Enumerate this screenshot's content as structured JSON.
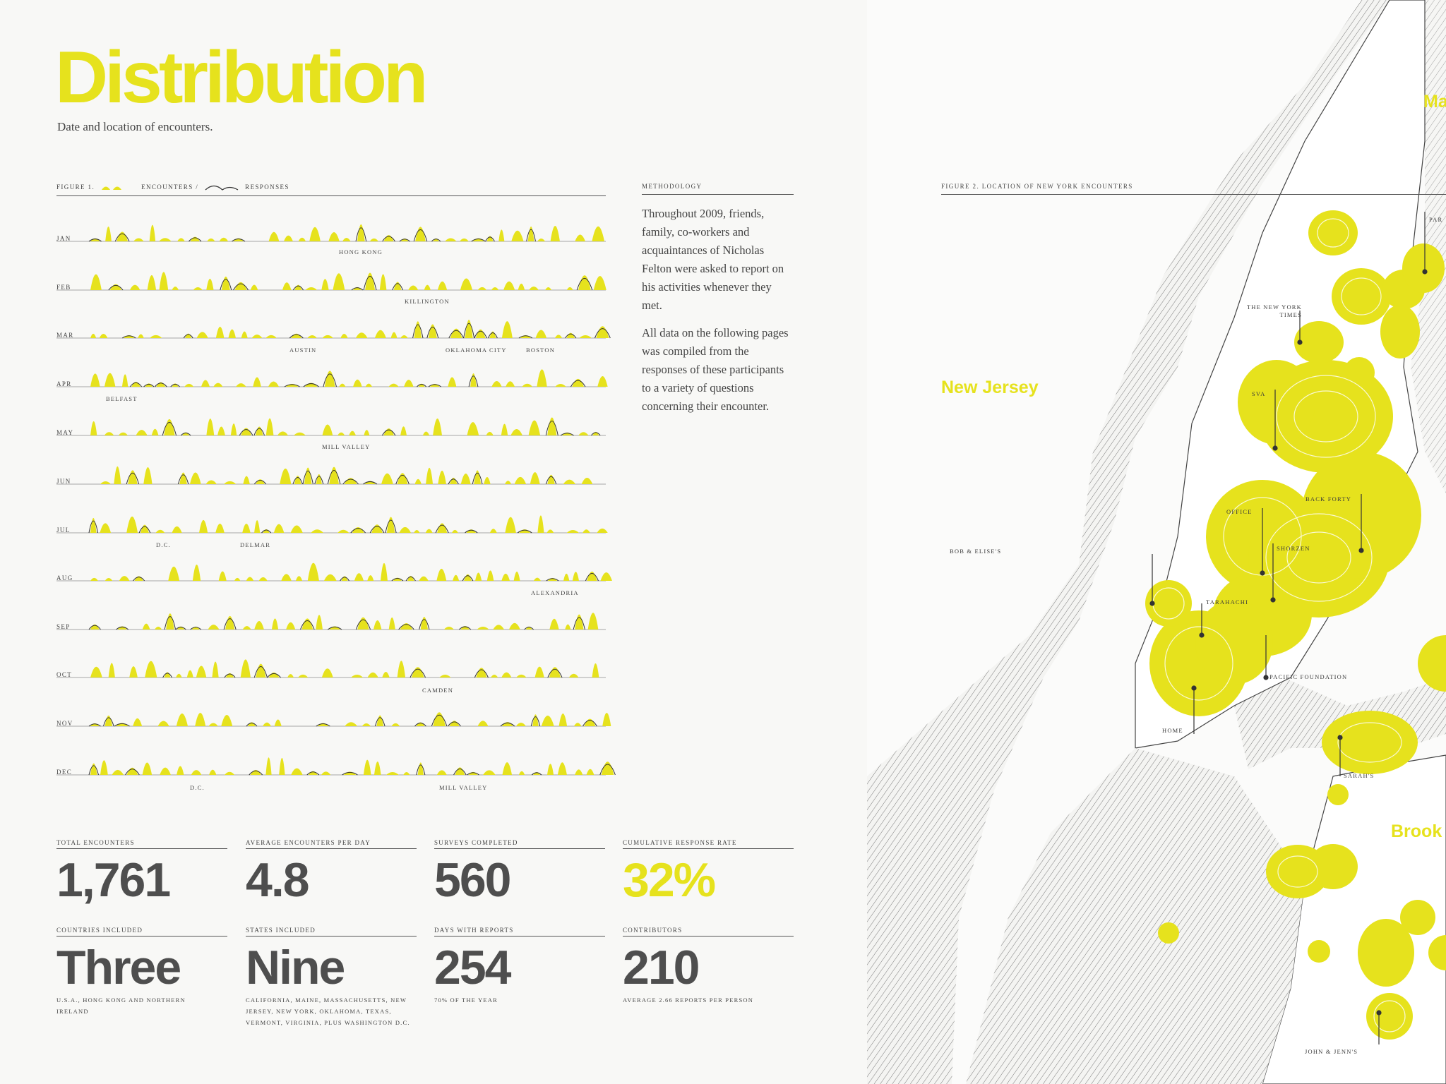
{
  "title": "Distribution",
  "subtitle": "Date and location of encounters.",
  "figure1": {
    "label": "FIGURE 1.",
    "legend_encounters": "ENCOUNTERS /",
    "legend_responses": "RESPONSES",
    "months": [
      {
        "name": "JAN",
        "places": [
          "HONG KONG"
        ]
      },
      {
        "name": "FEB",
        "places": [
          "KILLINGTON"
        ]
      },
      {
        "name": "MAR",
        "places": [
          "AUSTIN",
          "OKLAHOMA CITY",
          "BOSTON"
        ]
      },
      {
        "name": "APR",
        "places": [
          "BELFAST"
        ]
      },
      {
        "name": "MAY",
        "places": [
          "MILL VALLEY"
        ]
      },
      {
        "name": "JUN",
        "places": []
      },
      {
        "name": "JUL",
        "places": [
          "D.C.",
          "DELMAR"
        ]
      },
      {
        "name": "AUG",
        "places": [
          "ALEXANDRIA"
        ]
      },
      {
        "name": "SEP",
        "places": []
      },
      {
        "name": "OCT",
        "places": [
          "CAMDEN"
        ]
      },
      {
        "name": "NOV",
        "places": []
      },
      {
        "name": "DEC",
        "places": [
          "D.C.",
          "MILL VALLEY"
        ]
      }
    ]
  },
  "methodology": {
    "heading": "METHODOLOGY",
    "p1": "Throughout 2009, friends, family, co-workers and acquaintances of Nicholas Felton were asked to report on his activities whenever they met.",
    "p2": "All data on the following pages was compiled from the responses of these participants to a variety of questions concerning their encounter."
  },
  "stats": [
    {
      "label": "TOTAL ENCOUNTERS",
      "value": "1,761",
      "note": ""
    },
    {
      "label": "AVERAGE ENCOUNTERS PER DAY",
      "value": "4.8",
      "note": ""
    },
    {
      "label": "SURVEYS COMPLETED",
      "value": "560",
      "note": ""
    },
    {
      "label": "CUMULATIVE RESPONSE RATE",
      "value": "32%",
      "note": ""
    },
    {
      "label": "COUNTRIES INCLUDED",
      "value": "Three",
      "note": "U.S.A., HONG KONG AND NORTHERN IRELAND"
    },
    {
      "label": "STATES INCLUDED",
      "value": "Nine",
      "note": "CALIFORNIA, MAINE, MASSACHUSETTS, NEW JERSEY, NEW YORK, OKLAHOMA, TEXAS, VERMONT, VIRGINIA, PLUS WASHINGTON D.C."
    },
    {
      "label": "DAYS WITH REPORTS",
      "value": "254",
      "note": "70% OF THE YEAR"
    },
    {
      "label": "CONTRIBUTORS",
      "value": "210",
      "note": "AVERAGE 2.66 REPORTS PER PERSON"
    }
  ],
  "figure2": {
    "label": "FIGURE 2. LOCATION OF NEW YORK ENCOUNTERS",
    "regions": {
      "nj": "New Jersey",
      "ma": "Ma",
      "brook": "Brook"
    },
    "places": {
      "par": "PAR",
      "nyt": "THE NEW YORK TIMES",
      "sva": "SVA",
      "back_forty": "BACK FORTY",
      "office": "OFFICE",
      "shorzen": "SHORZEN",
      "bob": "BOB & ELISE'S",
      "tarahachi": "TARAHACHI",
      "pacific": "PACIFIC FOUNDATION",
      "home": "HOME",
      "sarah": "SARAH'S",
      "john": "JOHN & JENN'S"
    }
  },
  "colors": {
    "accent": "#e6e21d",
    "text": "#4e4e4e",
    "background": "#f8f8f6"
  }
}
